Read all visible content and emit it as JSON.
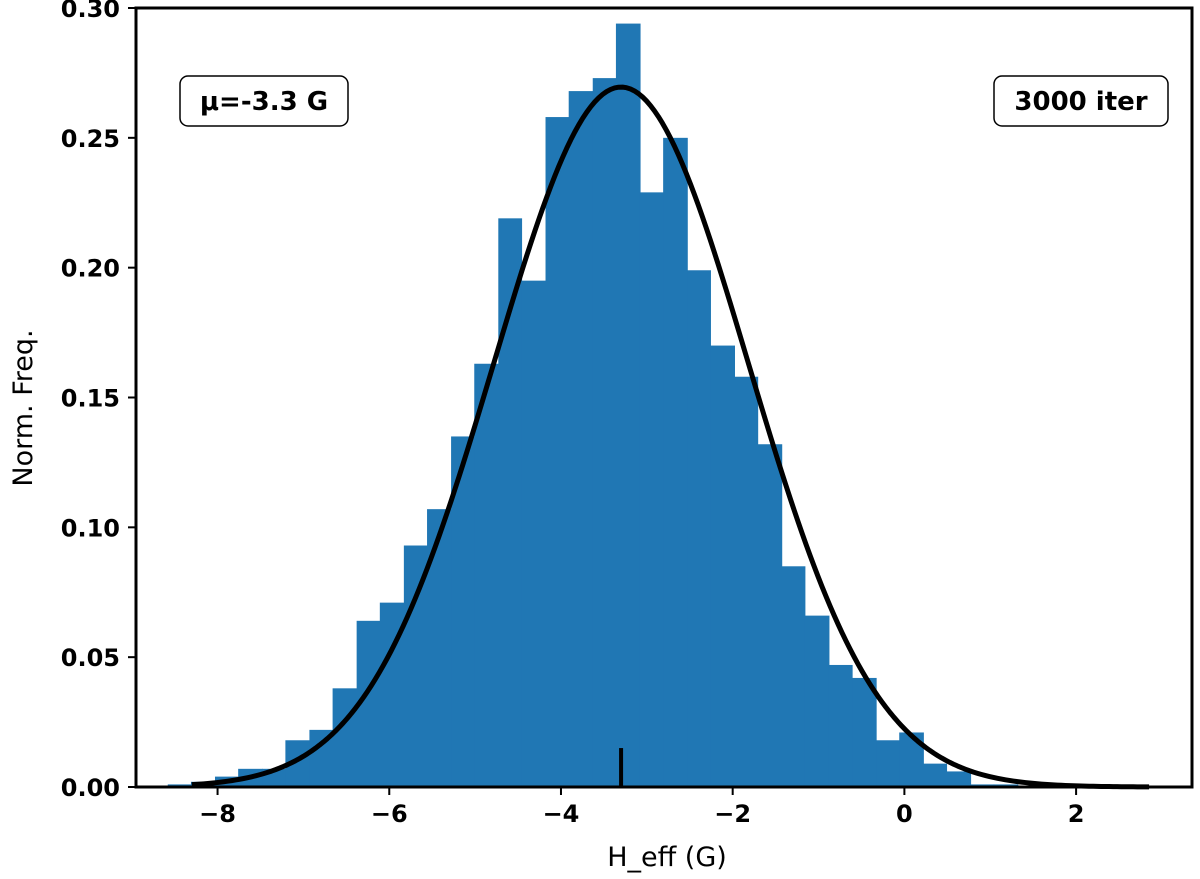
{
  "chart_data": {
    "type": "bar",
    "xlabel": "H_eff (G)",
    "ylabel": "Norm. Freq.",
    "xlim": [
      -8.95,
      3.35
    ],
    "ylim": [
      0,
      0.3
    ],
    "xticks": [
      -8,
      -6,
      -4,
      -2,
      0,
      2
    ],
    "xtick_labels": [
      "−8",
      "−6",
      "−4",
      "−2",
      "0",
      "2"
    ],
    "yticks": [
      0,
      0.05,
      0.1,
      0.15,
      0.2,
      0.25,
      0.3
    ],
    "ytick_labels": [
      "0.00",
      "0.05",
      "0.10",
      "0.15",
      "0.20",
      "0.25",
      "0.30"
    ],
    "bin_edges": [
      -8.58,
      -8.31,
      -8.03,
      -7.76,
      -7.48,
      -7.21,
      -6.93,
      -6.66,
      -6.38,
      -6.11,
      -5.83,
      -5.56,
      -5.28,
      -5.01,
      -4.73,
      -4.46,
      -4.18,
      -3.91,
      -3.63,
      -3.36,
      -3.08,
      -2.81,
      -2.53,
      -2.26,
      -1.98,
      -1.71,
      -1.43,
      -1.16,
      -0.88,
      -0.61,
      -0.33,
      -0.06,
      0.22,
      0.49,
      0.77,
      1.04,
      1.32,
      1.59,
      1.87,
      2.14,
      2.42,
      2.69,
      2.97
    ],
    "counts": [
      0.001,
      0.002,
      0.004,
      0.007,
      0.007,
      0.018,
      0.022,
      0.038,
      0.064,
      0.071,
      0.093,
      0.107,
      0.135,
      0.163,
      0.219,
      0.195,
      0.258,
      0.268,
      0.273,
      0.294,
      0.229,
      0.25,
      0.199,
      0.17,
      0.158,
      0.132,
      0.085,
      0.066,
      0.047,
      0.042,
      0.018,
      0.021,
      0.009,
      0.006,
      0.001,
      0.001,
      0.0,
      0.0,
      0.0,
      0.0,
      0.0,
      0.0
    ],
    "bar_color": "#2077b4",
    "fit_curve": {
      "type": "gaussian",
      "mu": -3.3,
      "sigma": 1.48,
      "color": "#000000",
      "x_range": [
        -8.3,
        2.85
      ]
    },
    "mean_marker": {
      "x": -3.3,
      "height": 0.015
    },
    "annotations": [
      {
        "text": "μ=-3.3 G",
        "position": "top-left"
      },
      {
        "text": "3000 iter",
        "position": "top-right"
      }
    ],
    "grid": false
  }
}
